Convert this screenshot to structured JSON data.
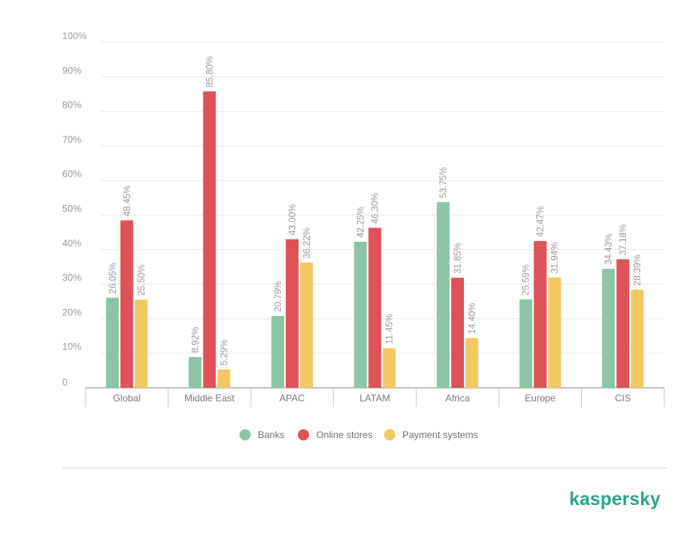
{
  "chart_data": {
    "type": "bar",
    "categories": [
      "Global",
      "Middle East",
      "APAC",
      "LATAM",
      "Africa",
      "Europe",
      "CIS"
    ],
    "series": [
      {
        "name": "Banks",
        "color": "#8cc5a5",
        "values": [
          26.05,
          8.92,
          20.79,
          42.25,
          53.75,
          25.59,
          34.43
        ],
        "labels": [
          "26.05%",
          "8.92%",
          "20.79%",
          "42.25%",
          "53.75%",
          "25.59%",
          "34.43%"
        ]
      },
      {
        "name": "Online stores",
        "color": "#df5258",
        "values": [
          48.45,
          85.8,
          43.0,
          46.3,
          31.85,
          42.47,
          37.18
        ],
        "labels": [
          "48.45%",
          "85.80%",
          "43.00%",
          "46.30%",
          "31.85%",
          "42.47%",
          "37.18%"
        ]
      },
      {
        "name": "Payment systems",
        "color": "#f1c962",
        "values": [
          25.5,
          5.29,
          36.22,
          11.45,
          14.4,
          31.94,
          28.39
        ],
        "labels": [
          "25.50%",
          "5.29%",
          "36.22%",
          "11.45%",
          "14.40%",
          "31.94%",
          "28.39%"
        ]
      }
    ],
    "ylim": [
      0,
      100
    ],
    "yticks": [
      0,
      10,
      20,
      30,
      40,
      50,
      60,
      70,
      80,
      90,
      100
    ],
    "ytick_labels": [
      "0",
      "10%",
      "20%",
      "30%",
      "40%",
      "50%",
      "60%",
      "70%",
      "80%",
      "90%",
      "100%"
    ],
    "grid": true,
    "legend_position": "bottom-center",
    "title": "",
    "xlabel": "",
    "ylabel": ""
  },
  "branding": {
    "logo_text": "kaspersky",
    "logo_color": "#2aa58b"
  }
}
